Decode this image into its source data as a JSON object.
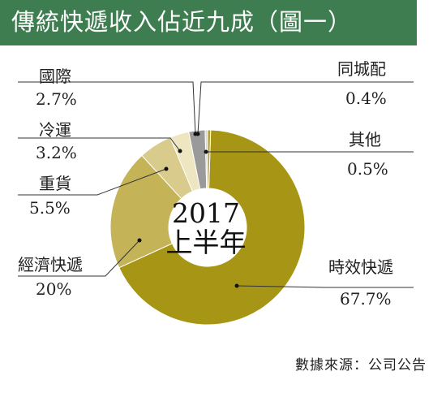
{
  "title": "傳統快遞收入佔近九成（圖一）",
  "source": "數據來源：公司公告",
  "colors": {
    "title_bg": "#3d7d4f",
    "slices": [
      "#a79516",
      "#c4b357",
      "#d9cb8b",
      "#ede6c1",
      "#9a9a9a",
      "#d6d6d6",
      "#b0a030"
    ]
  },
  "chart_data": {
    "type": "pie",
    "style": "donut",
    "center_label": [
      "2017",
      "上半年"
    ],
    "slices": [
      {
        "name": "時效快遞",
        "label": "67.7%",
        "value": 67.7
      },
      {
        "name": "經濟快遞",
        "label": "20%",
        "value": 20.0
      },
      {
        "name": "重貨",
        "label": "5.5%",
        "value": 5.5
      },
      {
        "name": "冷運",
        "label": "3.2%",
        "value": 3.2
      },
      {
        "name": "國際",
        "label": "2.7%",
        "value": 2.7
      },
      {
        "name": "同城配",
        "label": "0.4%",
        "value": 0.4
      },
      {
        "name": "其他",
        "label": "0.5%",
        "value": 0.5
      }
    ]
  }
}
